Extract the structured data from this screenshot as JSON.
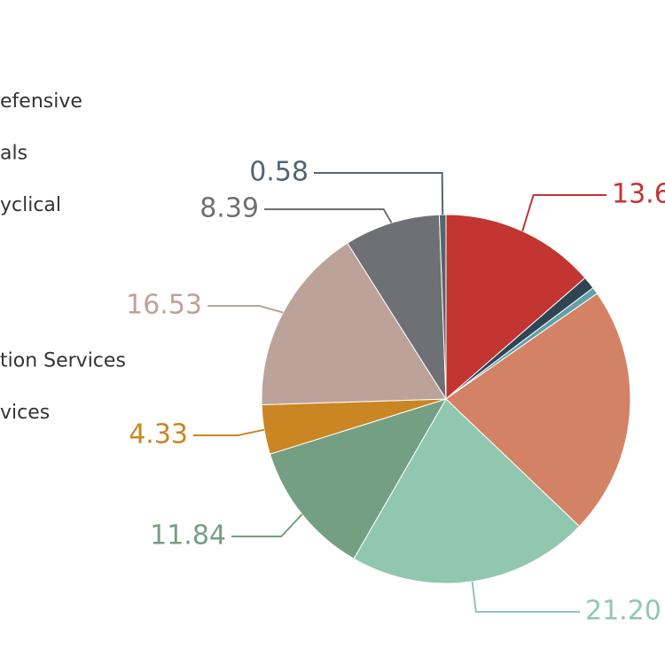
{
  "chart_data": {
    "type": "pie",
    "labels": [
      "efensive",
      "als",
      "yclical",
      null,
      null,
      "tion Services",
      "vices",
      null,
      null,
      null
    ],
    "values": [
      13.6,
      1.1,
      0.6,
      21.83,
      21.2,
      11.84,
      4.33,
      16.53,
      8.39,
      0.58
    ],
    "value_labels": [
      "13.6",
      null,
      null,
      null,
      "21.20",
      "11.84",
      "4.33",
      "16.53",
      "8.39",
      "0.58"
    ],
    "colors": [
      "#c23531",
      "#2f4554",
      "#61a0a8",
      "#d48265",
      "#91c7ae",
      "#749f83",
      "#ca8622",
      "#bda29a",
      "#6e7074",
      "#546570"
    ]
  }
}
